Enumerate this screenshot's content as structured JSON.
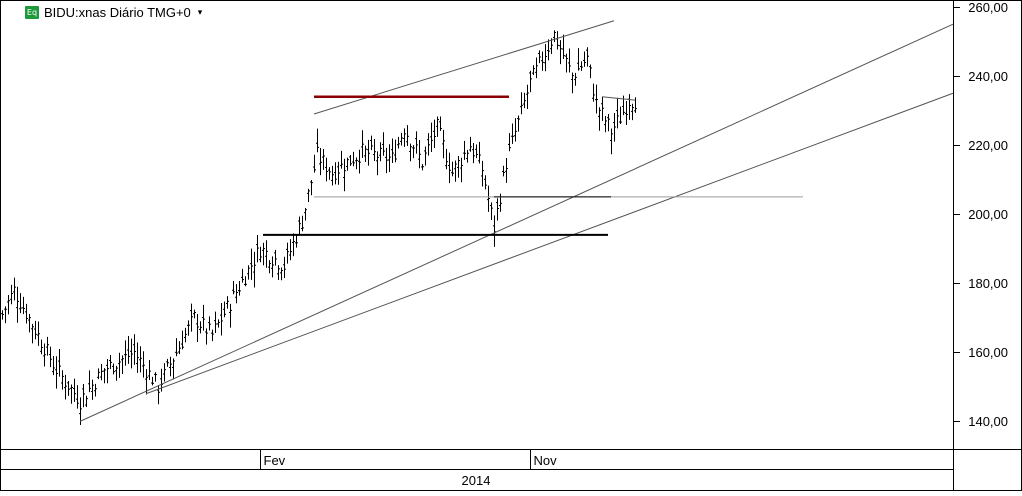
{
  "header": {
    "title": "BIDU:xnas Diário TMG+0",
    "badge": "Eq",
    "caret": "▾"
  },
  "chart_data": {
    "type": "ohlc",
    "symbol": "BIDU:xnas",
    "ylim": [
      132,
      262
    ],
    "yticks": [
      "140,00",
      "160,00",
      "180,00",
      "200,00",
      "220,00",
      "240,00",
      "260,00"
    ],
    "ytick_values": [
      140,
      160,
      180,
      200,
      220,
      240,
      260
    ],
    "x_labels": [
      {
        "text": "Fev",
        "index": 86
      },
      {
        "text": "Nov",
        "index": 176
      }
    ],
    "year_label": "2014",
    "bar_count": 212,
    "anchors": [
      [
        0,
        171
      ],
      [
        4,
        178
      ],
      [
        18,
        155
      ],
      [
        26,
        146
      ],
      [
        34,
        155
      ],
      [
        44,
        160
      ],
      [
        52,
        150
      ],
      [
        58,
        160
      ],
      [
        64,
        170
      ],
      [
        70,
        165
      ],
      [
        86,
        190
      ],
      [
        94,
        185
      ],
      [
        100,
        198
      ],
      [
        105,
        217
      ],
      [
        110,
        212
      ],
      [
        120,
        218
      ],
      [
        130,
        216
      ],
      [
        134,
        225
      ],
      [
        140,
        215
      ],
      [
        145,
        225
      ],
      [
        150,
        212
      ],
      [
        156,
        220
      ],
      [
        160,
        213
      ],
      [
        164,
        196
      ],
      [
        168,
        215
      ],
      [
        176,
        238
      ],
      [
        184,
        252
      ],
      [
        190,
        240
      ],
      [
        195,
        245
      ],
      [
        198,
        232
      ],
      [
        203,
        224
      ],
      [
        206,
        228
      ],
      [
        209,
        233
      ]
    ],
    "grid": false,
    "colors": {
      "bars": "#000000",
      "resistance": "#8b0000",
      "lines": "#555555"
    }
  }
}
